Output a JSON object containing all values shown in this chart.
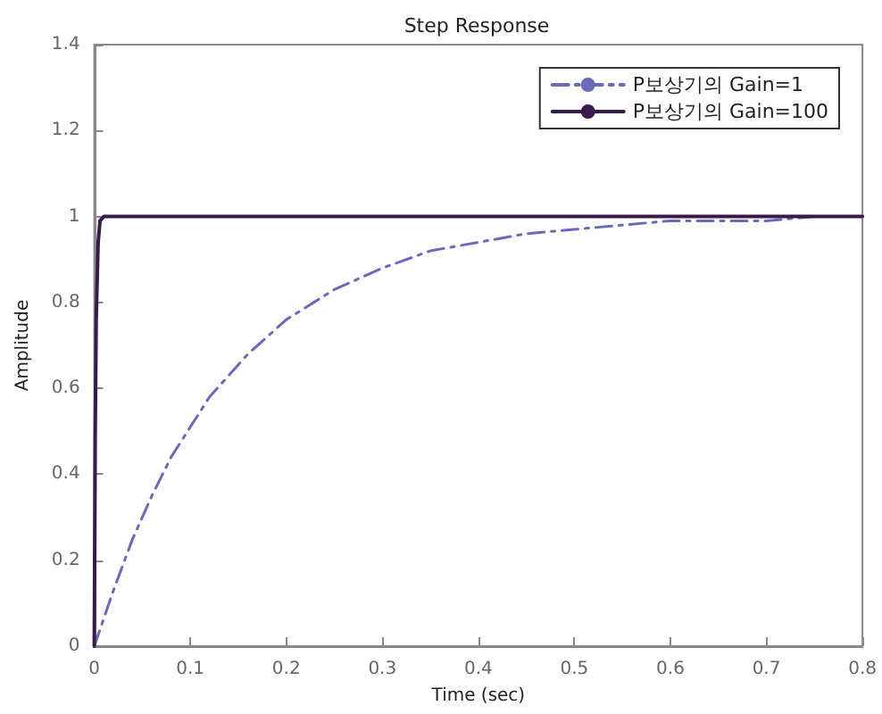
{
  "chart_data": {
    "type": "line",
    "title": "Step Response",
    "xlabel": "Time (sec)",
    "ylabel": "Amplitude",
    "xlim": [
      0,
      0.8
    ],
    "xticks": [
      0,
      0.1,
      0.2,
      0.3,
      0.4,
      0.5,
      0.6,
      0.7,
      0.8
    ],
    "ylim": [
      0,
      1.4
    ],
    "yticks": [
      0,
      0.2,
      0.4,
      0.6,
      0.8,
      1,
      1.2,
      1.4
    ],
    "grid": false,
    "legend": "top right",
    "marker": "none",
    "series": [
      {
        "name": "P보상기의 Gain=1",
        "color": "#6a6ab8",
        "line_style": "dashed",
        "x": [
          0,
          0.02,
          0.04,
          0.06,
          0.08,
          0.1,
          0.12,
          0.14,
          0.16,
          0.18,
          0.2,
          0.25,
          0.3,
          0.35,
          0.4,
          0.45,
          0.5,
          0.55,
          0.6,
          0.65,
          0.7,
          0.75,
          0.8
        ],
        "values": [
          0,
          0.13,
          0.25,
          0.35,
          0.44,
          0.51,
          0.58,
          0.63,
          0.68,
          0.72,
          0.76,
          0.83,
          0.88,
          0.92,
          0.94,
          0.96,
          0.97,
          0.98,
          0.99,
          0.99,
          0.99,
          1,
          1
        ]
      },
      {
        "name": "P보상기의 Gain=100",
        "color": "#3a1a4a",
        "line_style": "solid",
        "x": [
          0,
          0.001,
          0.002,
          0.004,
          0.006,
          0.01,
          0.8
        ],
        "values": [
          0,
          0.5,
          0.76,
          0.94,
          0.99,
          1,
          1
        ]
      }
    ]
  }
}
